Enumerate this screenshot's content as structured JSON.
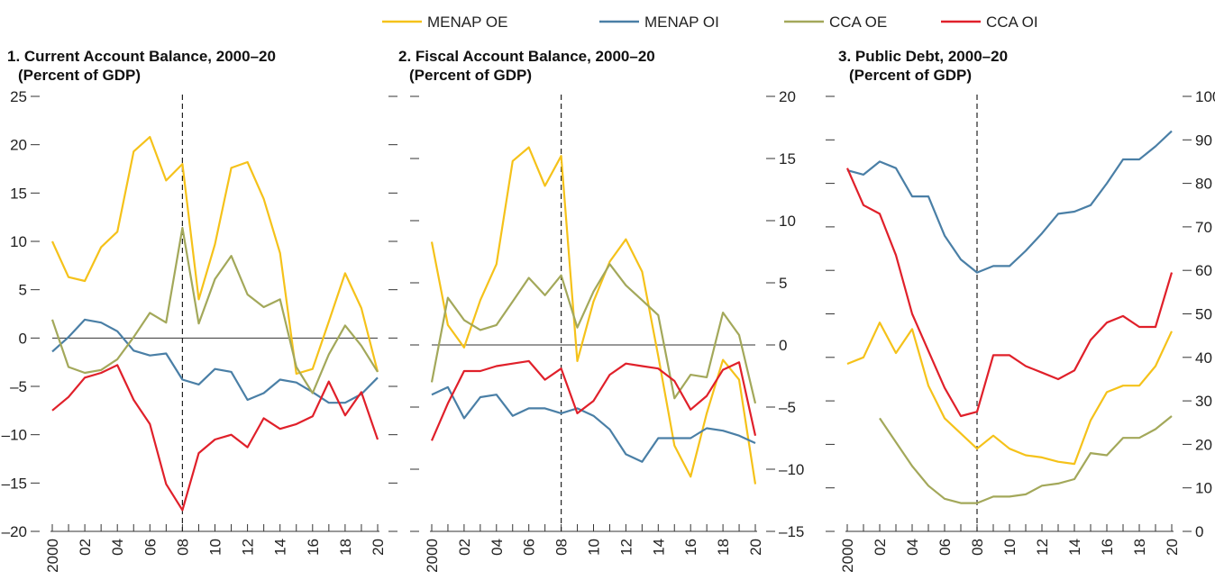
{
  "legend": [
    {
      "name": "MENAP OE",
      "color": "#f5c21a"
    },
    {
      "name": "MENAP OI",
      "color": "#4a7fa6"
    },
    {
      "name": "CCA OE",
      "color": "#a3a85a"
    },
    {
      "name": "CCA OI",
      "color": "#e0202a"
    }
  ],
  "chart_data": [
    {
      "type": "line",
      "title": "1. Current Account Balance, 2000–20",
      "subtitle": "(Percent of GDP)",
      "x": [
        2000,
        2001,
        2002,
        2003,
        2004,
        2005,
        2006,
        2007,
        2008,
        2009,
        2010,
        2011,
        2012,
        2013,
        2014,
        2015,
        2016,
        2017,
        2018,
        2019,
        2020
      ],
      "x_tick_labels": [
        "2000",
        "02",
        "04",
        "06",
        "08",
        "10",
        "12",
        "14",
        "16",
        "18",
        "20"
      ],
      "ylim": [
        -20,
        25
      ],
      "y_ticks": [
        -20,
        -15,
        -10,
        -5,
        0,
        5,
        10,
        15,
        20,
        25
      ],
      "y_tick_labels": [
        "–20",
        "–15",
        "–10",
        "–5",
        "0",
        "5",
        "10",
        "15",
        "20",
        "25"
      ],
      "y_axis_side": "left",
      "zero_line": true,
      "vline_x": 2008,
      "series": [
        {
          "name": "MENAP OE",
          "color": "#f5c21a",
          "values": [
            10.0,
            6.3,
            5.9,
            9.4,
            11.0,
            19.3,
            20.8,
            16.3,
            18.0,
            4.0,
            9.7,
            17.6,
            18.2,
            14.4,
            8.8,
            -3.7,
            -3.2,
            1.7,
            6.7,
            3.1,
            -3.5
          ]
        },
        {
          "name": "MENAP OI",
          "color": "#4a7fa6",
          "values": [
            -1.4,
            0.1,
            1.9,
            1.6,
            0.7,
            -1.3,
            -1.8,
            -1.6,
            -4.3,
            -4.8,
            -3.2,
            -3.5,
            -6.4,
            -5.7,
            -4.3,
            -4.6,
            -5.6,
            -6.7,
            -6.7,
            -5.8,
            -4.1
          ]
        },
        {
          "name": "CCA OE",
          "color": "#a3a85a",
          "values": [
            1.9,
            -3.0,
            -3.6,
            -3.3,
            -2.2,
            0.1,
            2.6,
            1.6,
            11.4,
            1.5,
            6.1,
            8.5,
            4.5,
            3.2,
            4.0,
            -3.0,
            -5.7,
            -1.7,
            1.3,
            -0.8,
            -3.5
          ]
        },
        {
          "name": "CCA OI",
          "color": "#e0202a",
          "values": [
            -7.5,
            -6.1,
            -4.1,
            -3.6,
            -2.8,
            -6.4,
            -8.9,
            -15.1,
            -17.8,
            -11.9,
            -10.5,
            -10.0,
            -11.3,
            -8.3,
            -9.4,
            -8.9,
            -8.1,
            -4.5,
            -8.0,
            -5.6,
            -10.5
          ]
        }
      ]
    },
    {
      "type": "line",
      "title": "2. Fiscal Account Balance, 2000–20",
      "subtitle": "(Percent of GDP)",
      "x": [
        2000,
        2001,
        2002,
        2003,
        2004,
        2005,
        2006,
        2007,
        2008,
        2009,
        2010,
        2011,
        2012,
        2013,
        2014,
        2015,
        2016,
        2017,
        2018,
        2019,
        2020
      ],
      "x_tick_labels": [
        "2000",
        "02",
        "04",
        "06",
        "08",
        "10",
        "12",
        "14",
        "16",
        "18",
        "20"
      ],
      "ylim": [
        -15,
        20
      ],
      "y_ticks": [
        -15,
        -10,
        -5,
        0,
        5,
        10,
        15,
        20
      ],
      "y_tick_labels": [
        "–15",
        "–10",
        "–5",
        "0",
        "5",
        "10",
        "15",
        "20"
      ],
      "y_axis_side": "right",
      "zero_line": true,
      "vline_x": 2008,
      "series": [
        {
          "name": "MENAP OE",
          "color": "#f5c21a",
          "values": [
            8.3,
            1.6,
            -0.2,
            3.6,
            6.5,
            14.8,
            15.9,
            12.8,
            15.2,
            -1.3,
            3.5,
            6.7,
            8.5,
            5.9,
            -0.9,
            -8.1,
            -10.6,
            -5.5,
            -1.2,
            -2.8,
            -11.2
          ]
        },
        {
          "name": "MENAP OI",
          "color": "#4a7fa6",
          "values": [
            -4.0,
            -3.4,
            -5.9,
            -4.2,
            -4.0,
            -5.7,
            -5.1,
            -5.1,
            -5.5,
            -5.1,
            -5.7,
            -6.8,
            -8.8,
            -9.4,
            -7.5,
            -7.5,
            -7.5,
            -6.7,
            -6.9,
            -7.3,
            -7.9
          ]
        },
        {
          "name": "CCA OE",
          "color": "#a3a85a",
          "values": [
            -3.0,
            3.8,
            2.0,
            1.2,
            1.6,
            3.5,
            5.4,
            4.0,
            5.6,
            1.4,
            4.3,
            6.5,
            4.8,
            3.6,
            2.4,
            -4.3,
            -2.4,
            -2.6,
            2.6,
            0.8,
            -4.7
          ]
        },
        {
          "name": "CCA OI",
          "color": "#e0202a",
          "values": [
            -7.7,
            -4.7,
            -2.1,
            -2.1,
            -1.7,
            -1.5,
            -1.3,
            -2.8,
            -1.9,
            -5.5,
            -4.5,
            -2.4,
            -1.5,
            -1.7,
            -1.9,
            -2.9,
            -5.2,
            -4.1,
            -2.0,
            -1.4,
            -7.3
          ]
        }
      ]
    },
    {
      "type": "line",
      "title": "3. Public Debt, 2000–20",
      "subtitle": "(Percent of GDP)",
      "x": [
        2000,
        2001,
        2002,
        2003,
        2004,
        2005,
        2006,
        2007,
        2008,
        2009,
        2010,
        2011,
        2012,
        2013,
        2014,
        2015,
        2016,
        2017,
        2018,
        2019,
        2020
      ],
      "x_tick_labels": [
        "2000",
        "02",
        "04",
        "06",
        "08",
        "10",
        "12",
        "14",
        "16",
        "18",
        "20"
      ],
      "ylim": [
        0,
        100
      ],
      "y_ticks": [
        0,
        10,
        20,
        30,
        40,
        50,
        60,
        70,
        80,
        90,
        100
      ],
      "y_tick_labels": [
        "0",
        "10",
        "20",
        "30",
        "40",
        "50",
        "60",
        "70",
        "80",
        "90",
        "100"
      ],
      "y_axis_side": "right",
      "zero_line": false,
      "vline_x": 2008,
      "series": [
        {
          "name": "MENAP OE",
          "color": "#f5c21a",
          "values": [
            38.5,
            40.0,
            48.0,
            41.0,
            46.5,
            33.5,
            26.0,
            22.5,
            19.0,
            22.0,
            19.0,
            17.5,
            17.0,
            16.0,
            15.5,
            25.5,
            32.0,
            33.5,
            33.5,
            38.0,
            46.0
          ]
        },
        {
          "name": "MENAP OI",
          "color": "#4a7fa6",
          "values": [
            83.0,
            82.0,
            85.0,
            83.5,
            77.0,
            77.0,
            68.0,
            62.5,
            59.5,
            61.0,
            61.0,
            64.5,
            68.5,
            73.0,
            73.5,
            75.0,
            80.0,
            85.5,
            85.5,
            88.5,
            92.0
          ]
        },
        {
          "name": "CCA OE",
          "color": "#a3a85a",
          "values": [
            null,
            null,
            26.0,
            20.5,
            15.0,
            10.5,
            7.5,
            6.5,
            6.5,
            8.0,
            8.0,
            8.5,
            10.5,
            11.0,
            12.0,
            18.0,
            17.5,
            21.5,
            21.5,
            23.5,
            26.5
          ]
        },
        {
          "name": "CCA OI",
          "color": "#e0202a",
          "values": [
            83.5,
            75.0,
            73.0,
            63.5,
            50.0,
            41.5,
            33.0,
            26.5,
            27.5,
            40.5,
            40.5,
            38.0,
            36.5,
            35.0,
            37.0,
            44.0,
            48.0,
            49.5,
            47.0,
            47.0,
            59.5
          ]
        }
      ]
    }
  ]
}
